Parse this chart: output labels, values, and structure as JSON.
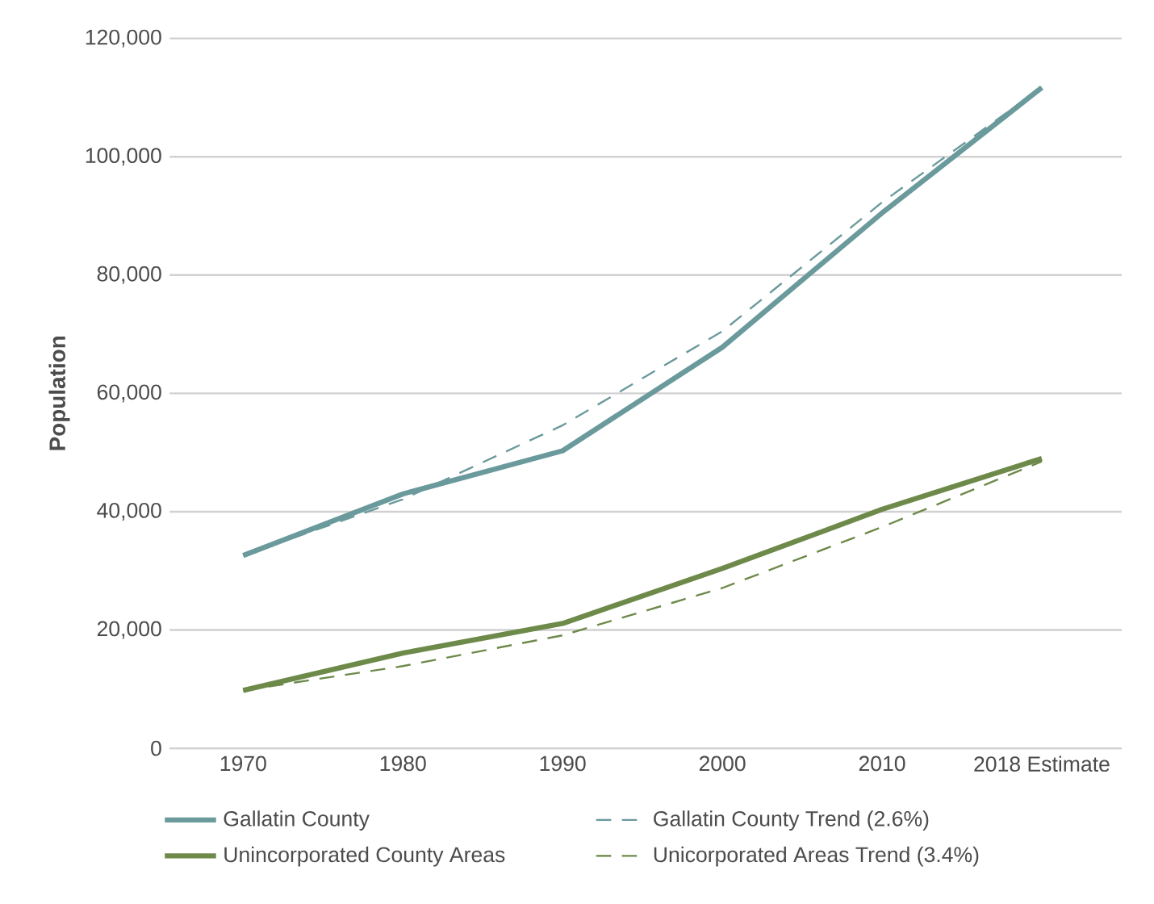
{
  "chart_data": {
    "type": "line",
    "ylabel": "Population",
    "categories": [
      "1970",
      "1980",
      "1990",
      "2000",
      "2010",
      "2018 Estimate"
    ],
    "series": [
      {
        "name": "Gallatin County",
        "color": "#6b9a9c",
        "line_style": "solid",
        "values": [
          32600,
          43000,
          50300,
          67800,
          90500,
          111700
        ]
      },
      {
        "name": "Gallatin County Trend (2.6%)",
        "color": "#6b9a9c",
        "line_style": "dashed",
        "values": [
          32600,
          42100,
          54600,
          70500,
          92300,
          111700
        ]
      },
      {
        "name": "Unincorporated County Areas",
        "color": "#6e8a4a",
        "line_style": "solid",
        "values": [
          9800,
          16100,
          21100,
          30400,
          40400,
          49000
        ]
      },
      {
        "name": "Unicorporated Areas Trend (3.4%)",
        "color": "#6e8a4a",
        "line_style": "dashed",
        "values": [
          9800,
          13900,
          19100,
          27100,
          37400,
          48500
        ]
      }
    ],
    "ylim": [
      0,
      120000
    ],
    "yticks": [
      {
        "value": 0,
        "label": "0"
      },
      {
        "value": 20000,
        "label": "20,000"
      },
      {
        "value": 40000,
        "label": "40,000"
      },
      {
        "value": 60000,
        "label": "60,000"
      },
      {
        "value": 80000,
        "label": "80,000"
      },
      {
        "value": 100000,
        "label": "100,000"
      },
      {
        "value": 120000,
        "label": "120,000"
      }
    ],
    "grid": "y",
    "legend": "bottom",
    "marker": "none"
  }
}
